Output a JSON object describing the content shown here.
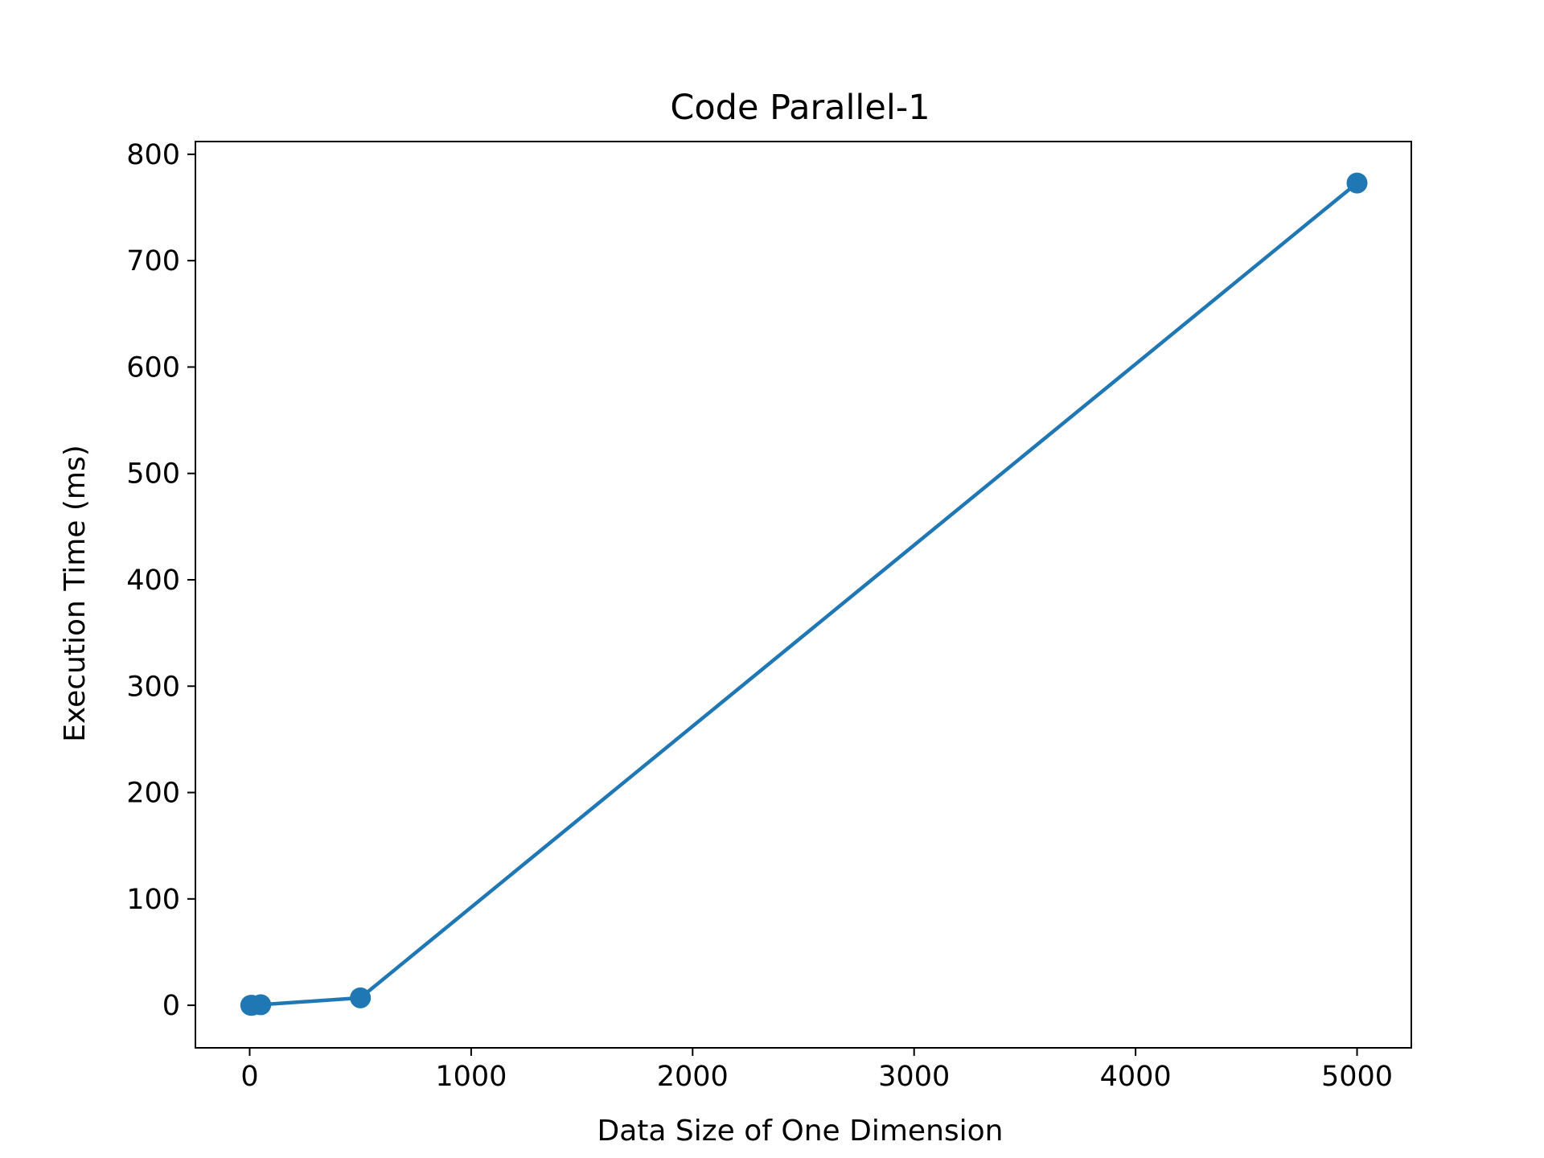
{
  "chart_data": {
    "type": "line",
    "title": "Code Parallel-1",
    "xlabel": "Data Size of One Dimension",
    "ylabel": "Execution Time (ms)",
    "xlim": [
      -245,
      5245
    ],
    "ylim": [
      -40,
      812
    ],
    "xticks": [
      0,
      1000,
      2000,
      3000,
      4000,
      5000
    ],
    "yticks": [
      0,
      100,
      200,
      300,
      400,
      500,
      600,
      700,
      800
    ],
    "grid": false,
    "series": [
      {
        "color": "#1f77b4",
        "marker": "circle",
        "points": [
          {
            "x": 5,
            "y": 0
          },
          {
            "x": 10,
            "y": 0
          },
          {
            "x": 50,
            "y": 0.5
          },
          {
            "x": 500,
            "y": 7
          },
          {
            "x": 5000,
            "y": 773
          }
        ]
      }
    ]
  }
}
